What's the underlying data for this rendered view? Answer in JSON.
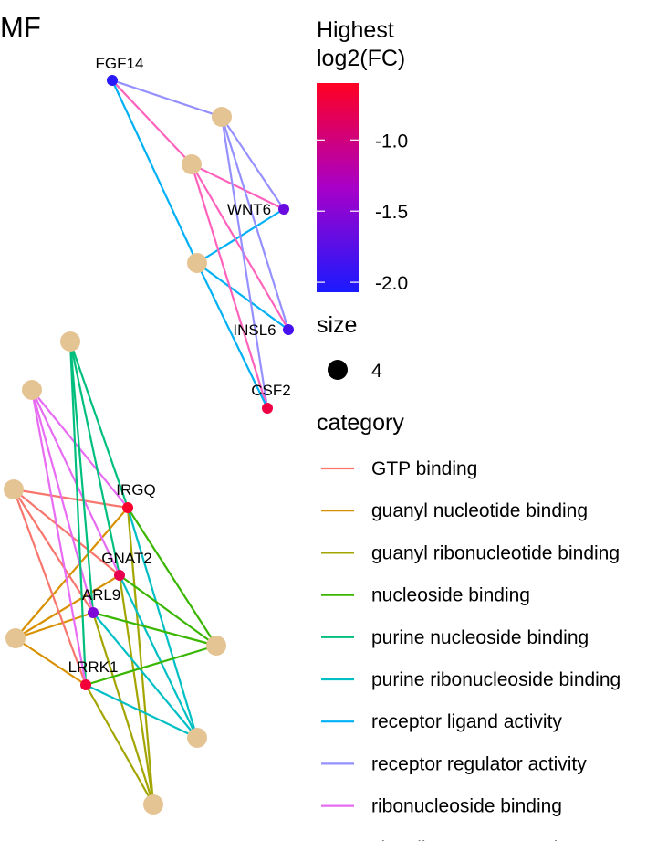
{
  "title": "MF",
  "legend": {
    "color_title_line1": "Highest",
    "color_title_line2": "log2(FC)",
    "color_ticks": [
      {
        "value": -1.0,
        "label": "-1.0"
      },
      {
        "value": -1.5,
        "label": "-1.5"
      },
      {
        "value": -2.0,
        "label": "-2.0"
      }
    ],
    "color_range": [
      -2.07,
      -0.6
    ],
    "gradient_colors": {
      "high": "#ff0022",
      "mid": "#a800c8",
      "low": "#1a1aff"
    },
    "size_title": "size",
    "size_value": "4",
    "category_title": "category",
    "categories": [
      {
        "key": "gtp",
        "label": "GTP binding",
        "color": "#f8766d"
      },
      {
        "key": "guanyl",
        "label": "guanyl nucleotide binding",
        "color": "#d89000"
      },
      {
        "key": "guanylribo",
        "label": "guanyl ribonucleotide binding",
        "color": "#a3a500"
      },
      {
        "key": "nucleoside",
        "label": "nucleoside binding",
        "color": "#39b600"
      },
      {
        "key": "purinenuc",
        "label": "purine nucleoside binding",
        "color": "#00bf7d"
      },
      {
        "key": "purineribo",
        "label": "purine ribonucleoside binding",
        "color": "#00bfc4"
      },
      {
        "key": "receptorligand",
        "label": "receptor ligand activity",
        "color": "#00b0f6"
      },
      {
        "key": "receptorregulator",
        "label": "receptor regulator activity",
        "color": "#9590ff"
      },
      {
        "key": "ribonucleoside",
        "label": "ribonucleoside binding",
        "color": "#e76bf3"
      },
      {
        "key": "signaling",
        "label": "signaling receptor activator",
        "color": "#ff62bc"
      }
    ]
  },
  "genes": [
    {
      "id": "FGF14",
      "label": "FGF14",
      "log2fc": -2.0
    },
    {
      "id": "WNT6",
      "label": "WNT6",
      "log2fc": -1.65
    },
    {
      "id": "INSL6",
      "label": "INSL6",
      "log2fc": -1.85
    },
    {
      "id": "CSF2",
      "label": "CSF2",
      "log2fc": -0.75
    },
    {
      "id": "IRGQ",
      "label": "IRGQ",
      "log2fc": -0.65
    },
    {
      "id": "GNAT2",
      "label": "GNAT2",
      "log2fc": -0.8
    },
    {
      "id": "ARL9",
      "label": "ARL9",
      "log2fc": -1.55
    },
    {
      "id": "LRRK1",
      "label": "LRRK1",
      "log2fc": -0.7
    }
  ],
  "edges": [
    {
      "from": "FGF14",
      "to": "receptorregulator"
    },
    {
      "from": "FGF14",
      "to": "signaling"
    },
    {
      "from": "FGF14",
      "to": "receptorligand"
    },
    {
      "from": "WNT6",
      "to": "receptorregulator"
    },
    {
      "from": "WNT6",
      "to": "signaling"
    },
    {
      "from": "WNT6",
      "to": "receptorligand"
    },
    {
      "from": "INSL6",
      "to": "receptorregulator"
    },
    {
      "from": "INSL6",
      "to": "signaling"
    },
    {
      "from": "INSL6",
      "to": "receptorligand"
    },
    {
      "from": "CSF2",
      "to": "receptorregulator"
    },
    {
      "from": "CSF2",
      "to": "signaling"
    },
    {
      "from": "CSF2",
      "to": "receptorligand"
    },
    {
      "from": "IRGQ",
      "to": "gtp"
    },
    {
      "from": "IRGQ",
      "to": "guanyl"
    },
    {
      "from": "IRGQ",
      "to": "guanylribo"
    },
    {
      "from": "IRGQ",
      "to": "nucleoside"
    },
    {
      "from": "IRGQ",
      "to": "purinenuc"
    },
    {
      "from": "IRGQ",
      "to": "purineribo"
    },
    {
      "from": "IRGQ",
      "to": "ribonucleoside"
    },
    {
      "from": "GNAT2",
      "to": "gtp"
    },
    {
      "from": "GNAT2",
      "to": "guanyl"
    },
    {
      "from": "GNAT2",
      "to": "guanylribo"
    },
    {
      "from": "GNAT2",
      "to": "nucleoside"
    },
    {
      "from": "GNAT2",
      "to": "purinenuc"
    },
    {
      "from": "GNAT2",
      "to": "purineribo"
    },
    {
      "from": "GNAT2",
      "to": "ribonucleoside"
    },
    {
      "from": "ARL9",
      "to": "gtp"
    },
    {
      "from": "ARL9",
      "to": "guanyl"
    },
    {
      "from": "ARL9",
      "to": "guanylribo"
    },
    {
      "from": "ARL9",
      "to": "nucleoside"
    },
    {
      "from": "ARL9",
      "to": "purinenuc"
    },
    {
      "from": "ARL9",
      "to": "purineribo"
    },
    {
      "from": "ARL9",
      "to": "ribonucleoside"
    },
    {
      "from": "LRRK1",
      "to": "gtp"
    },
    {
      "from": "LRRK1",
      "to": "guanyl"
    },
    {
      "from": "LRRK1",
      "to": "guanylribo"
    },
    {
      "from": "LRRK1",
      "to": "nucleoside"
    },
    {
      "from": "LRRK1",
      "to": "purinenuc"
    },
    {
      "from": "LRRK1",
      "to": "purineribo"
    },
    {
      "from": "LRRK1",
      "to": "ribonucleoside"
    }
  ]
}
